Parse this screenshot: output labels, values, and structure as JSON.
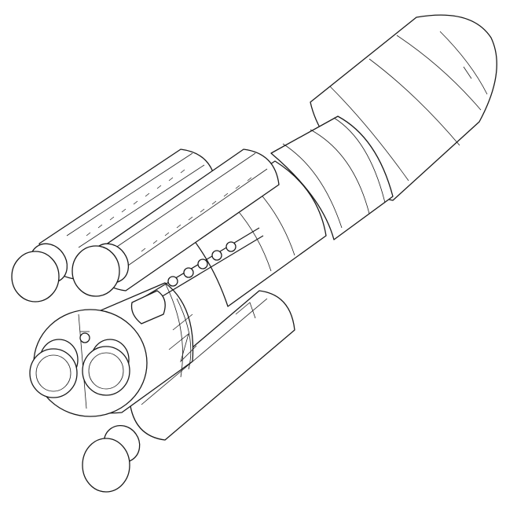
{
  "image": {
    "subject": "rocket-line-drawing",
    "line_color": "#1a1a1a",
    "background_color": "#ffffff"
  }
}
